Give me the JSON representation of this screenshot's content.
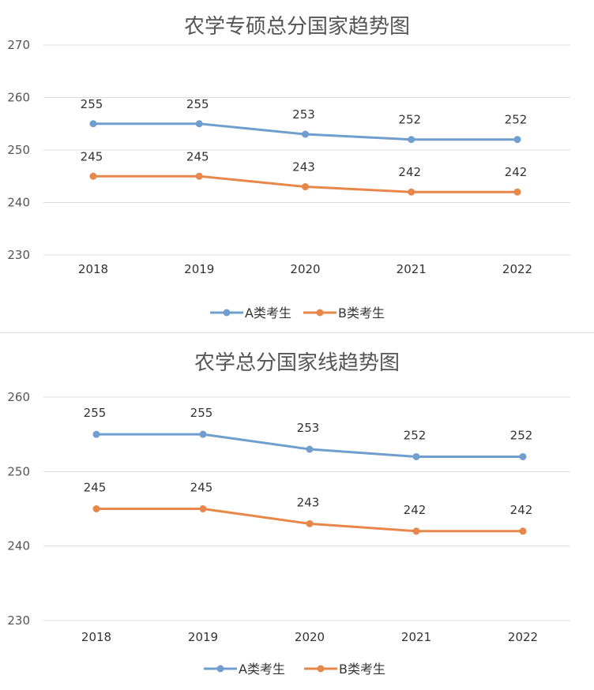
{
  "chart_data": [
    {
      "type": "line",
      "title": "农学专硕总分国家趋势图",
      "categories": [
        "2018",
        "2019",
        "2020",
        "2021",
        "2022"
      ],
      "series": [
        {
          "name": "A类考生",
          "values": [
            255,
            255,
            253,
            252,
            252
          ],
          "color": "#6f9ecf"
        },
        {
          "name": "B类考生",
          "values": [
            245,
            245,
            243,
            242,
            242
          ],
          "color": "#e8874a"
        }
      ],
      "ylim": [
        230,
        270
      ],
      "yticks": [
        "230",
        "240",
        "250",
        "260",
        "270"
      ],
      "xlabel": "",
      "ylabel": "",
      "grid": true,
      "legend": "bottom"
    },
    {
      "type": "line",
      "title": "农学总分国家线趋势图",
      "categories": [
        "2018",
        "2019",
        "2020",
        "2021",
        "2022"
      ],
      "series": [
        {
          "name": "A类考生",
          "values": [
            255,
            255,
            253,
            252,
            252
          ],
          "color": "#6f9ecf"
        },
        {
          "name": "B类考生",
          "values": [
            245,
            245,
            243,
            242,
            242
          ],
          "color": "#e8874a"
        }
      ],
      "ylim": [
        230,
        260
      ],
      "yticks": [
        "230",
        "240",
        "250",
        "260"
      ],
      "xlabel": "",
      "ylabel": "",
      "grid": true,
      "legend": "bottom"
    }
  ]
}
